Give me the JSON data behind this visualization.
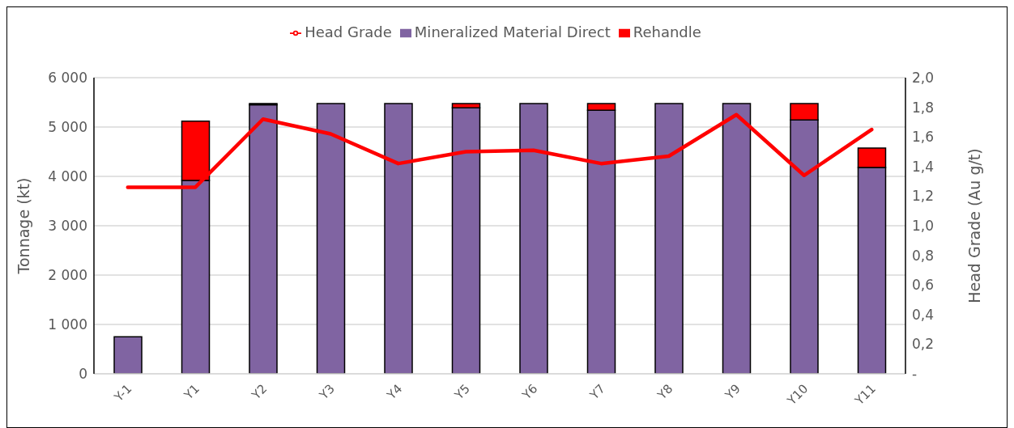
{
  "chart_data": {
    "type": "bar",
    "stacked": true,
    "categories": [
      "Y-1",
      "Y1",
      "Y2",
      "Y3",
      "Y4",
      "Y5",
      "Y6",
      "Y7",
      "Y8",
      "Y9",
      "Y10",
      "Y11"
    ],
    "series": [
      {
        "name": "Mineralized Material Direct",
        "color": "#8064a2",
        "values": [
          750,
          3920,
          5450,
          5475,
          5475,
          5390,
          5475,
          5340,
          5475,
          5475,
          5145,
          4180
        ]
      },
      {
        "name": "Rehandle",
        "color": "#ff0000",
        "values": [
          null,
          1200,
          25,
          null,
          null,
          85,
          null,
          135,
          null,
          null,
          330,
          395
        ]
      },
      {
        "name": "Head Grade",
        "type": "line",
        "axis": "y2",
        "color": "#ff0000",
        "values": [
          1.26,
          1.26,
          1.72,
          1.62,
          1.42,
          1.5,
          1.51,
          1.42,
          1.47,
          1.75,
          1.34,
          1.65
        ]
      }
    ],
    "ylabel": "Tonnage (kt)",
    "y2label": "Head Grade (Au g/t)",
    "ylim": [
      0,
      6000
    ],
    "yticks": [
      {
        "value": 0,
        "label": "0"
      },
      {
        "value": 1000,
        "label": "1 000"
      },
      {
        "value": 2000,
        "label": "2 000"
      },
      {
        "value": 3000,
        "label": "3 000"
      },
      {
        "value": 4000,
        "label": "4 000"
      },
      {
        "value": 5000,
        "label": "5 000"
      },
      {
        "value": 6000,
        "label": "6 000"
      }
    ],
    "y2lim": [
      0,
      2
    ],
    "y2ticks": [
      {
        "value": 0,
        "label": "-"
      },
      {
        "value": 0.2,
        "label": "0,2"
      },
      {
        "value": 0.4,
        "label": "0,4"
      },
      {
        "value": 0.6,
        "label": "0,6"
      },
      {
        "value": 0.8,
        "label": "0,8"
      },
      {
        "value": 1,
        "label": "1,0"
      },
      {
        "value": 1.2,
        "label": "1,2"
      },
      {
        "value": 1.4,
        "label": "1,4"
      },
      {
        "value": 1.6,
        "label": "1,6"
      },
      {
        "value": 1.8,
        "label": "1,8"
      },
      {
        "value": 2,
        "label": "2,0"
      }
    ],
    "grid": "y",
    "legend": "top",
    "marker": "none"
  }
}
